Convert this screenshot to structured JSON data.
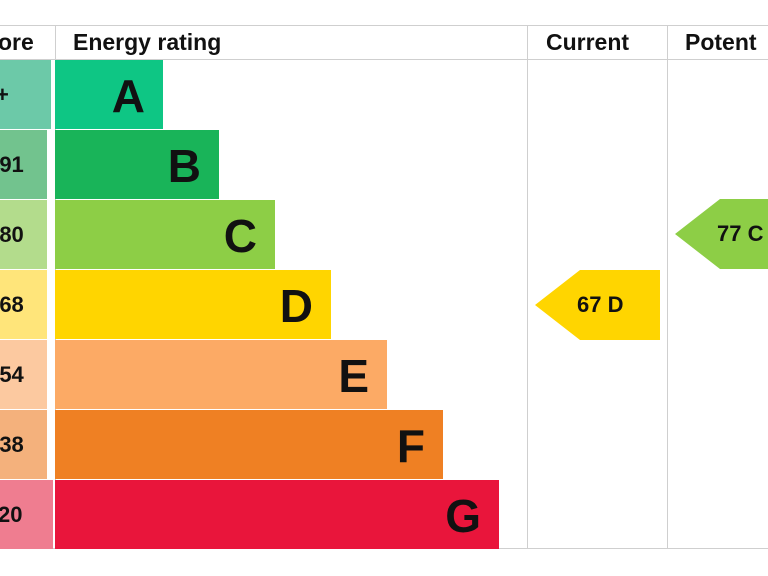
{
  "header": {
    "score": "ore",
    "energy_rating": "Energy rating",
    "current": "Current",
    "potential": "Potent"
  },
  "chart_data": {
    "type": "bar",
    "categories": [
      "A",
      "B",
      "C",
      "D",
      "E",
      "F",
      "G"
    ],
    "score_ranges": [
      "+",
      "-91",
      "-80",
      "-68",
      "-54",
      "-38",
      "20"
    ],
    "colors": [
      "#0ec684",
      "#19b459",
      "#8dce46",
      "#ffd500",
      "#fcaa65",
      "#ef8023",
      "#e9153b"
    ],
    "score_colors": [
      "#6cc9a8",
      "#72c38e",
      "#b3dc8c",
      "#ffe57a",
      "#fcc9a0",
      "#f4b17c",
      "#ef7d90"
    ],
    "current": {
      "value": 67,
      "band": "D",
      "label": "67  D",
      "color": "#ffd500"
    },
    "potential": {
      "value": 77,
      "band": "C",
      "label": "77  C",
      "color": "#8dce46"
    }
  }
}
